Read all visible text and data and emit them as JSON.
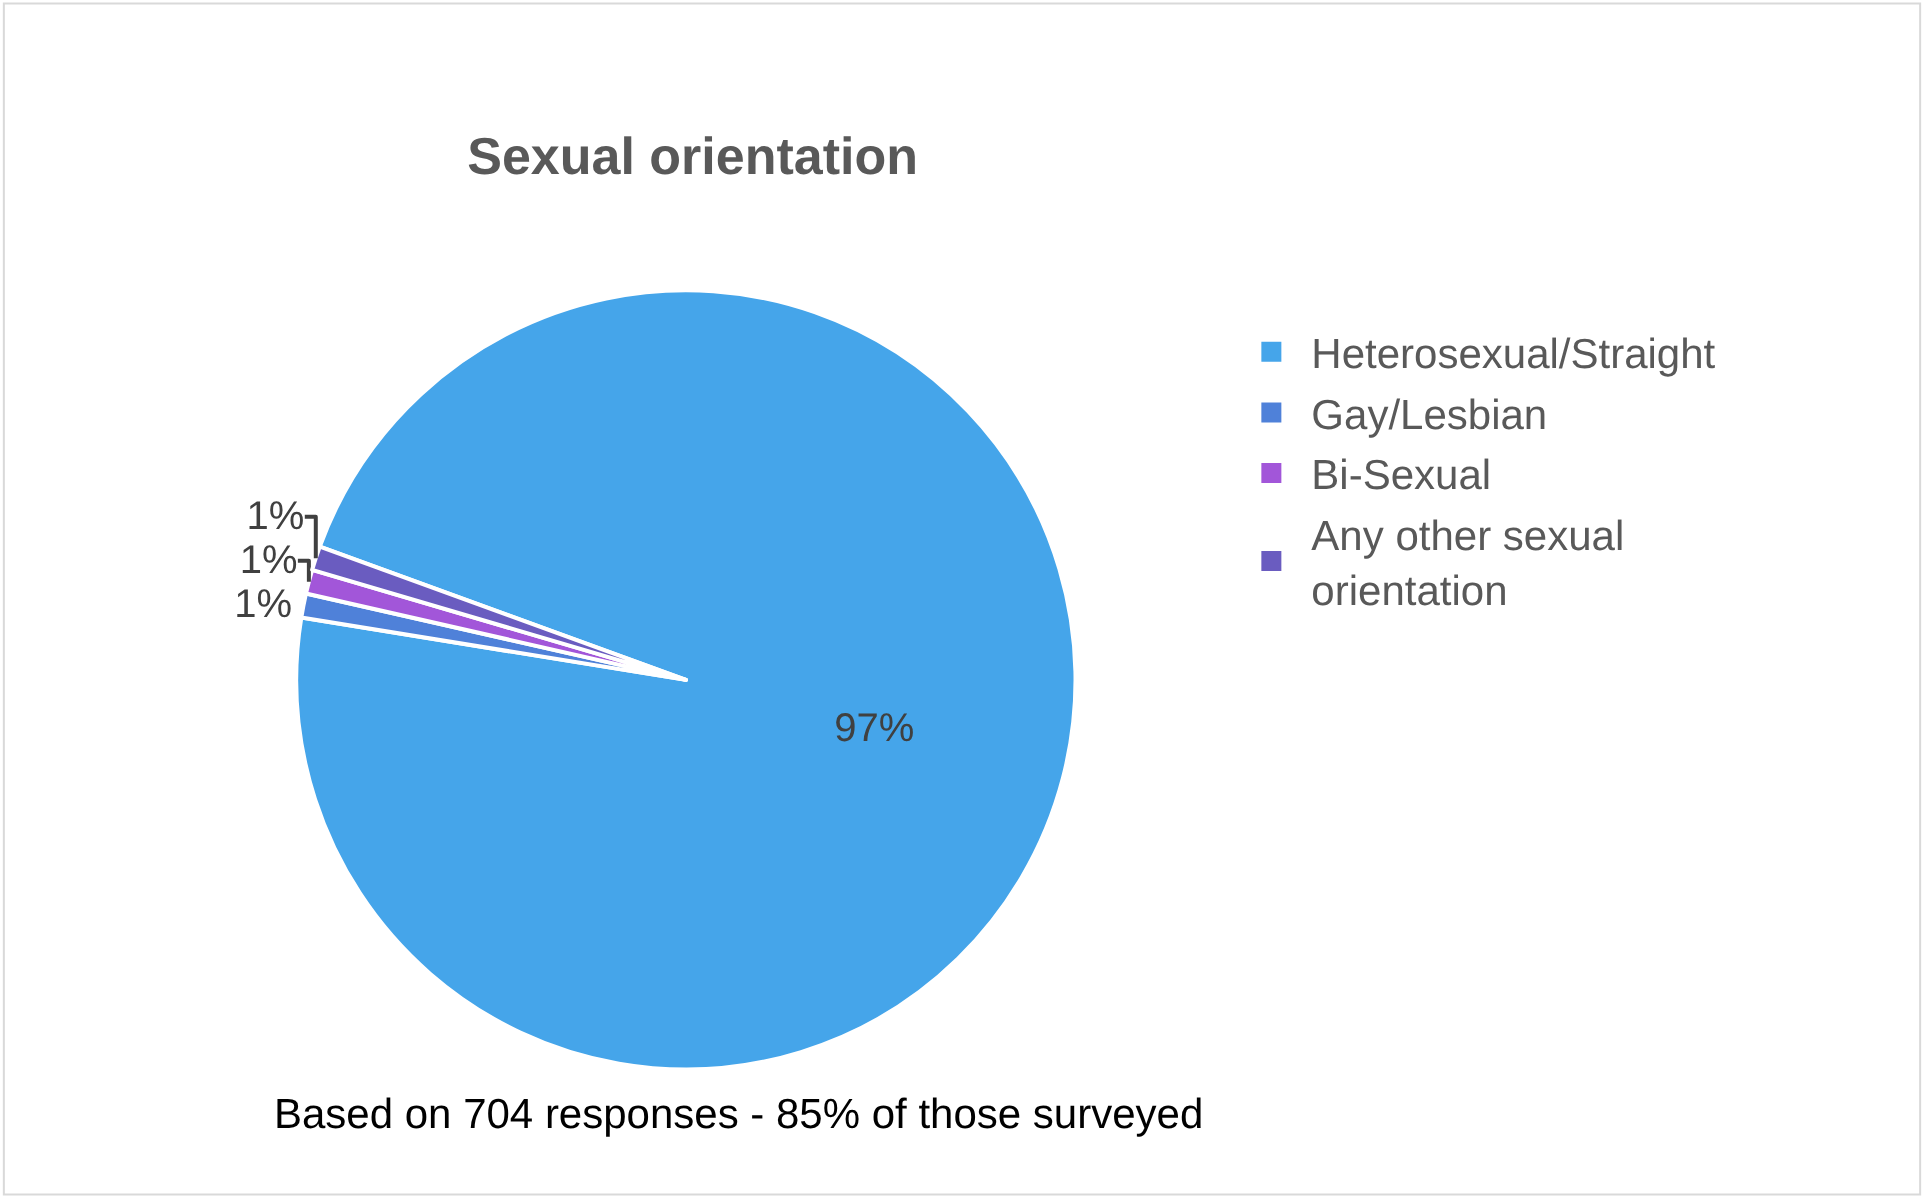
{
  "chart_data": {
    "type": "pie",
    "title": "Sexual orientation",
    "categories": [
      "Heterosexual/Straight",
      "Gay/Lesbian",
      "Bi-Sexual",
      "Any other sexual orientation"
    ],
    "values": [
      97,
      1,
      1,
      1
    ],
    "colors": [
      "#45a5ea",
      "#4f81d9",
      "#a256d9",
      "#6a5cc0"
    ],
    "value_labels": [
      "97%",
      "1%",
      "1%",
      "1%"
    ],
    "legend": "right",
    "annotations": [
      "Based on 704 responses - 85% of those surveyed"
    ]
  }
}
